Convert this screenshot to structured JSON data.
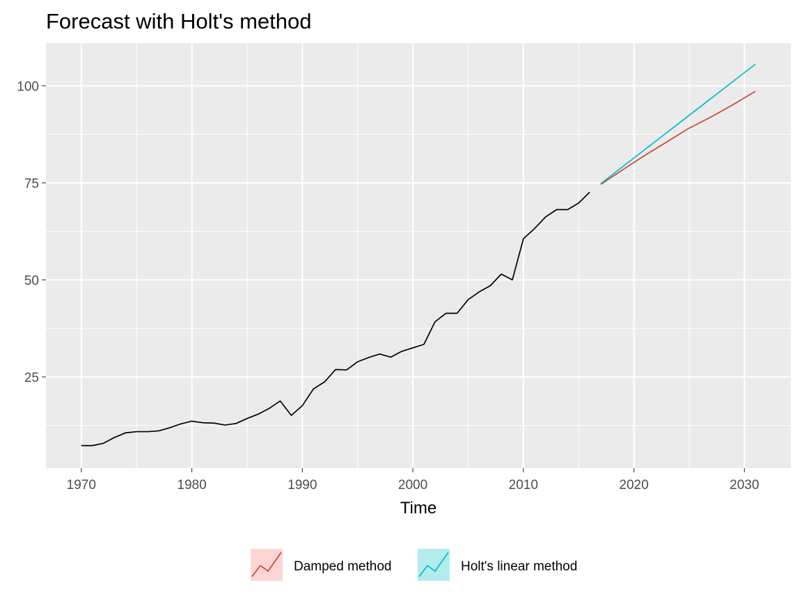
{
  "chart_data": {
    "type": "line",
    "title": "Forecast with Holt's method",
    "xlabel": "Time",
    "ylabel": "",
    "xlim": [
      1966.8,
      2034.2
    ],
    "ylim": [
      1.5,
      111
    ],
    "x_ticks": [
      1970,
      1980,
      1990,
      2000,
      2010,
      2020,
      2030
    ],
    "y_ticks": [
      25,
      50,
      75,
      100
    ],
    "grid": true,
    "legend_position": "bottom",
    "colors": {
      "panel_bg": "#ebebeb",
      "grid": "#ffffff",
      "observed": "#000000",
      "damped": "#f8766d",
      "damped_line": "#c9472f",
      "holt": "#00bfc4",
      "holt_line": "#00bcd0"
    },
    "series": [
      {
        "key": "observed",
        "x": [
          1970,
          1971,
          1972,
          1973,
          1974,
          1975,
          1976,
          1977,
          1978,
          1979,
          1980,
          1981,
          1982,
          1983,
          1984,
          1985,
          1986,
          1987,
          1988,
          1989,
          1990,
          1991,
          1992,
          1993,
          1994,
          1995,
          1996,
          1997,
          1998,
          1999,
          2000,
          2001,
          2002,
          2003,
          2004,
          2005,
          2006,
          2007,
          2008,
          2009,
          2010,
          2011,
          2012,
          2013,
          2014,
          2015,
          2016
        ],
        "values": [
          7.3,
          7.3,
          7.9,
          9.4,
          10.6,
          10.9,
          10.9,
          11.1,
          11.9,
          12.9,
          13.6,
          13.2,
          13.1,
          12.6,
          13.0,
          14.3,
          15.4,
          16.9,
          18.8,
          15.1,
          17.6,
          21.9,
          23.7,
          26.9,
          26.8,
          28.9,
          30.0,
          30.9,
          30.1,
          31.6,
          32.5,
          33.4,
          39.2,
          41.4,
          41.4,
          44.9,
          46.9,
          48.5,
          51.5,
          50.0,
          60.6,
          63.2,
          66.2,
          68.1,
          68.1,
          69.8,
          72.6
        ]
      },
      {
        "key": "damped",
        "name": "Damped method",
        "x": [
          2017,
          2019,
          2021,
          2023,
          2025,
          2027,
          2029,
          2031
        ],
        "values": [
          74.6,
          78.4,
          82.1,
          85.6,
          89.1,
          92.0,
          95.2,
          98.6
        ]
      },
      {
        "key": "holt",
        "name": "Holt's linear method",
        "x": [
          2017,
          2031
        ],
        "values": [
          74.8,
          105.6
        ]
      }
    ],
    "legend": [
      {
        "key": "damped",
        "label": "Damped method"
      },
      {
        "key": "holt",
        "label": "Holt's linear method"
      }
    ]
  }
}
